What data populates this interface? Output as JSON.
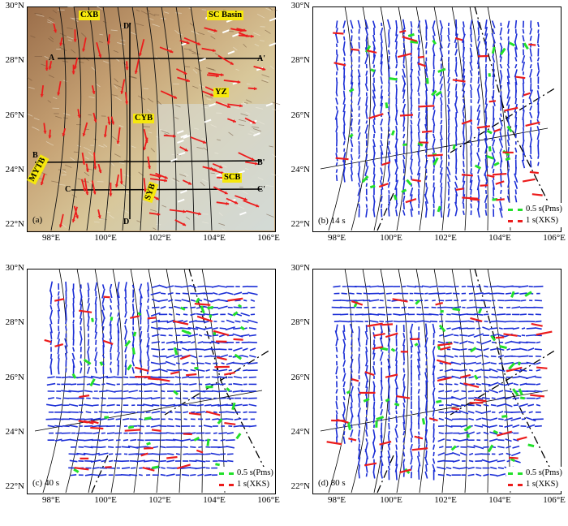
{
  "panels": [
    {
      "id": "a",
      "label": "(a)",
      "tags": [
        "CXB",
        "SC Basin",
        "YZ",
        "CYB",
        "SCB",
        "MYTB",
        "SYB"
      ],
      "profiles": [
        "D'",
        "A'",
        "A",
        "B",
        "B'",
        "C",
        "C'",
        "D"
      ]
    },
    {
      "id": "b",
      "label": "(b) 14 s"
    },
    {
      "id": "c",
      "label": "(c) 40 s"
    },
    {
      "id": "d",
      "label": "(d) 80 s"
    }
  ],
  "axes": {
    "lat_labels": [
      "30°N",
      "28°N",
      "26°N",
      "24°N",
      "22°N"
    ],
    "lon_labels": [
      "98°E",
      "100°E",
      "102°E",
      "104°E",
      "106°E"
    ]
  },
  "legend": {
    "pms": "0.5 s(Pms)",
    "xks": "1 s(XKS)"
  },
  "colors": {
    "blue": "#1c2fd6",
    "green": "#22e02a",
    "red": "#ec1c1c",
    "tag": "#f6e80c"
  }
}
